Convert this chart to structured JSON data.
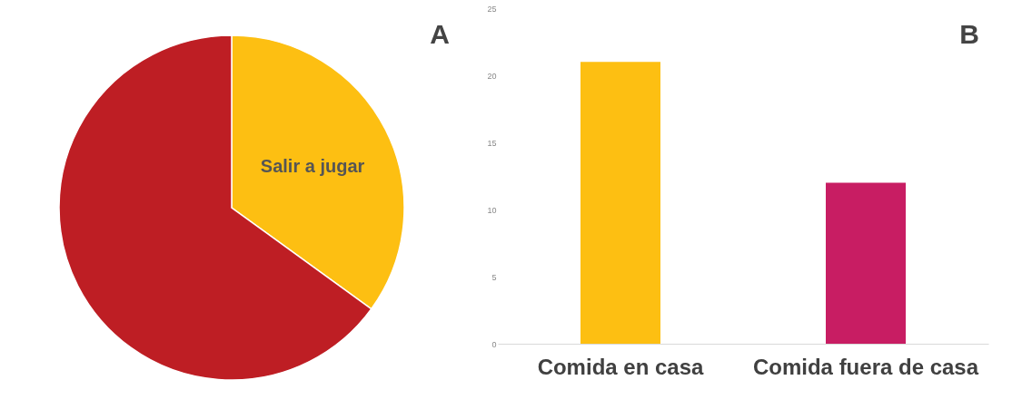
{
  "chart_data": [
    {
      "type": "pie",
      "categories": [
        "Salir a jugar",
        null
      ],
      "values": [
        35,
        65
      ],
      "colors": [
        "#fdbf12",
        "#be1e24"
      ],
      "annotations": [
        "A"
      ]
    },
    {
      "type": "bar",
      "categories": [
        "Comida en casa",
        "Comida fuera de casa"
      ],
      "values": [
        21,
        12
      ],
      "colors": [
        "#fdbf12",
        "#c81d63"
      ],
      "ylim": [
        0,
        25
      ],
      "yticks": [
        0,
        5,
        10,
        15,
        20,
        25
      ],
      "grid": false,
      "annotations": [
        "B"
      ]
    }
  ]
}
